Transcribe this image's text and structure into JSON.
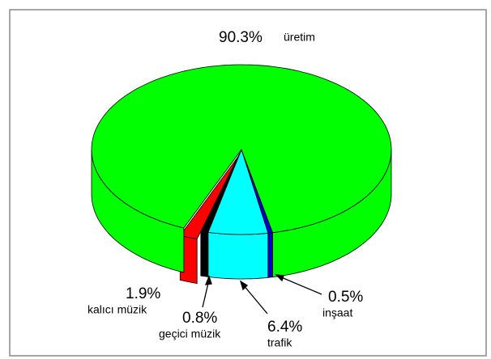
{
  "chart_data": {
    "type": "pie",
    "categories": [
      "inşaat",
      "trafik",
      "geçici müzik",
      "kalıcı müzik",
      "üretim"
    ],
    "values": [
      0.5,
      6.4,
      0.8,
      1.9,
      90.3
    ],
    "value_labels": [
      "0.5%",
      "6.4%",
      "0.8%",
      "1.9%",
      "90.3%"
    ],
    "colors": [
      "#0000cc",
      "#00ffff",
      "#000000",
      "#ff0000",
      "#00ff00"
    ]
  }
}
